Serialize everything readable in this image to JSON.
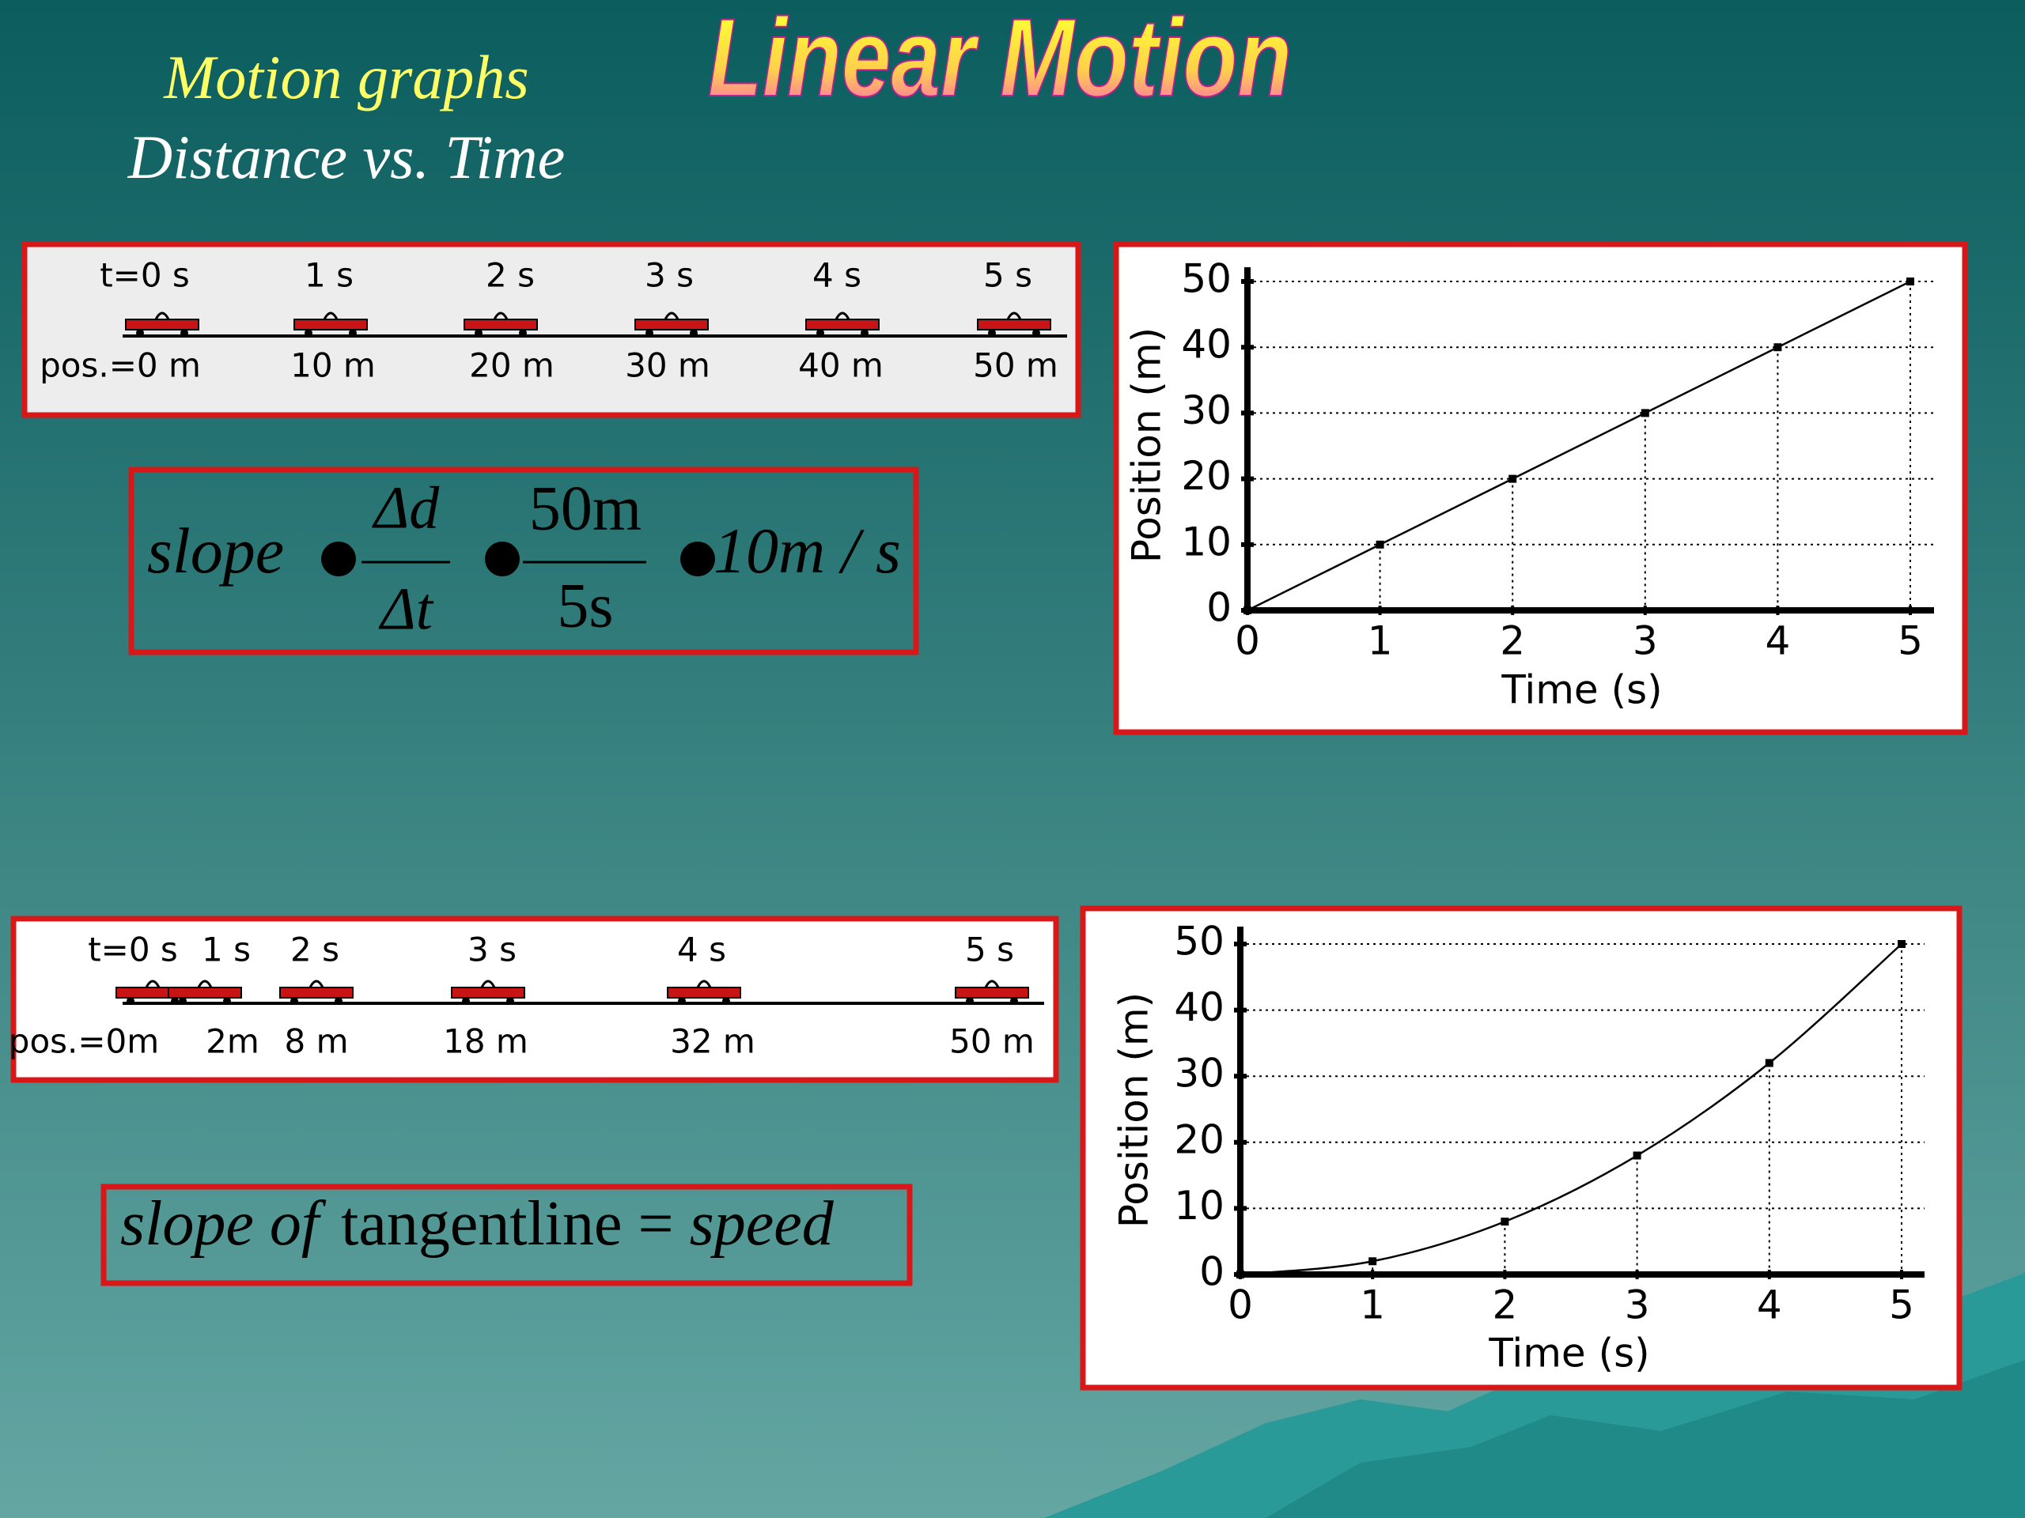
{
  "slide": {
    "title": "Linear Motion",
    "heading": "Motion graphs",
    "subheading": "Distance vs. Time"
  },
  "diagram_constant": {
    "times": [
      "t=0 s",
      "1 s",
      "2 s",
      "3 s",
      "4 s",
      "5 s"
    ],
    "positions": [
      "pos.=0 m",
      "10 m",
      "20 m",
      "30 m",
      "40 m",
      "50 m"
    ]
  },
  "formula_slope": {
    "lhs": "slope",
    "numerator": "Δd",
    "denominator": "Δt",
    "num_value": "50m",
    "den_value": "5s",
    "result": "10m / s"
  },
  "diagram_accelerating": {
    "times": [
      "t=0 s",
      "1 s",
      "2 s",
      "3 s",
      "4 s",
      "5 s"
    ],
    "positions": [
      "pos.=0m",
      "2m",
      "8 m",
      "18 m",
      "32 m",
      "50 m"
    ]
  },
  "formula_tangent": {
    "left": "slope of",
    "middle": "tangentline =",
    "right": "speed"
  },
  "chart_data": [
    {
      "type": "line",
      "xlabel": "Time (s)",
      "ylabel": "Position (m)",
      "x": [
        0,
        1,
        2,
        3,
        4,
        5
      ],
      "series": [
        {
          "color": "#000000",
          "values": [
            0,
            10,
            20,
            30,
            40,
            50
          ]
        }
      ],
      "xlim": [
        0,
        5
      ],
      "ylim": [
        0,
        50
      ],
      "xticks": [
        0,
        1,
        2,
        3,
        4,
        5
      ],
      "yticks": [
        0,
        10,
        20,
        30,
        40,
        50
      ],
      "grid": true
    },
    {
      "type": "line",
      "xlabel": "Time (s)",
      "ylabel": "Position (m)",
      "x": [
        0,
        1,
        2,
        3,
        4,
        5
      ],
      "series": [
        {
          "color": "#000000",
          "values": [
            0,
            2,
            8,
            18,
            32,
            50
          ]
        }
      ],
      "xlim": [
        0,
        5
      ],
      "ylim": [
        0,
        50
      ],
      "xticks": [
        0,
        1,
        2,
        3,
        4,
        5
      ],
      "yticks": [
        0,
        10,
        20,
        30,
        40,
        50
      ],
      "grid": true
    }
  ]
}
